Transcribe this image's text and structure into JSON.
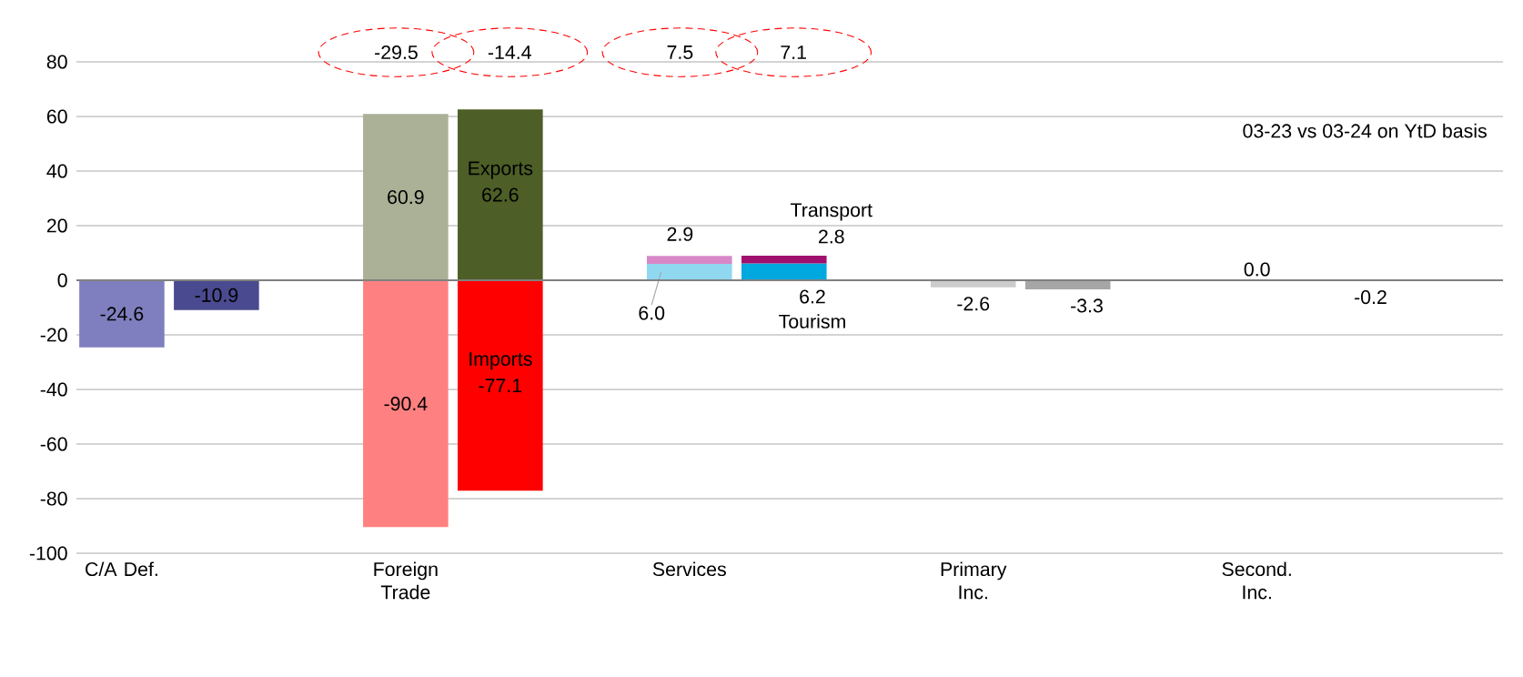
{
  "chart_data": {
    "type": "bar",
    "stacked": true,
    "subtitle": "03-23 vs 03-24 on YtD basis",
    "categories": [
      "C/A Def.",
      null,
      "Foreign Trade",
      null,
      "Services",
      null,
      "Primary Inc.",
      null,
      "Second. Inc.",
      null
    ],
    "series": [
      {
        "values": [
          -24.6,
          -10.9,
          60.9,
          62.6,
          6.0,
          6.2,
          -2.6,
          -3.3,
          0.0,
          -0.2
        ],
        "colors": [
          "#7f7fbf",
          "#4a4a90",
          "#aab196",
          "#4d5e26",
          "#8fd8f0",
          "#00a8e0",
          "#cccccc",
          "#a6a6a6",
          "#999999",
          "#999999"
        ],
        "value_labels": [
          "-24.6",
          "-10.9",
          "60.9",
          "62.6",
          "6.0",
          "6.2",
          "-2.6",
          "-3.3",
          "0.0",
          "-0.2"
        ]
      },
      {
        "values": [
          null,
          null,
          -90.4,
          -77.1,
          2.9,
          2.8,
          null,
          null,
          null,
          null
        ],
        "colors": [
          null,
          null,
          "#ff8080",
          "#ff0000",
          "#d888c8",
          "#a0106e",
          null,
          null,
          null,
          null
        ],
        "value_labels": [
          null,
          null,
          "-90.4",
          "-77.1",
          "2.9",
          "2.8",
          null,
          null,
          null,
          null
        ]
      }
    ],
    "annotations": [
      "-29.5",
      "-14.4",
      "7.5",
      "7.1",
      "Exports",
      "Imports",
      "Tourism",
      "Transport"
    ],
    "data_labels": true,
    "ylim": [
      -100,
      80
    ],
    "yticks": [
      -100,
      -80,
      -60,
      -40,
      -20,
      0,
      20,
      40,
      60,
      80
    ],
    "grid": "y"
  }
}
